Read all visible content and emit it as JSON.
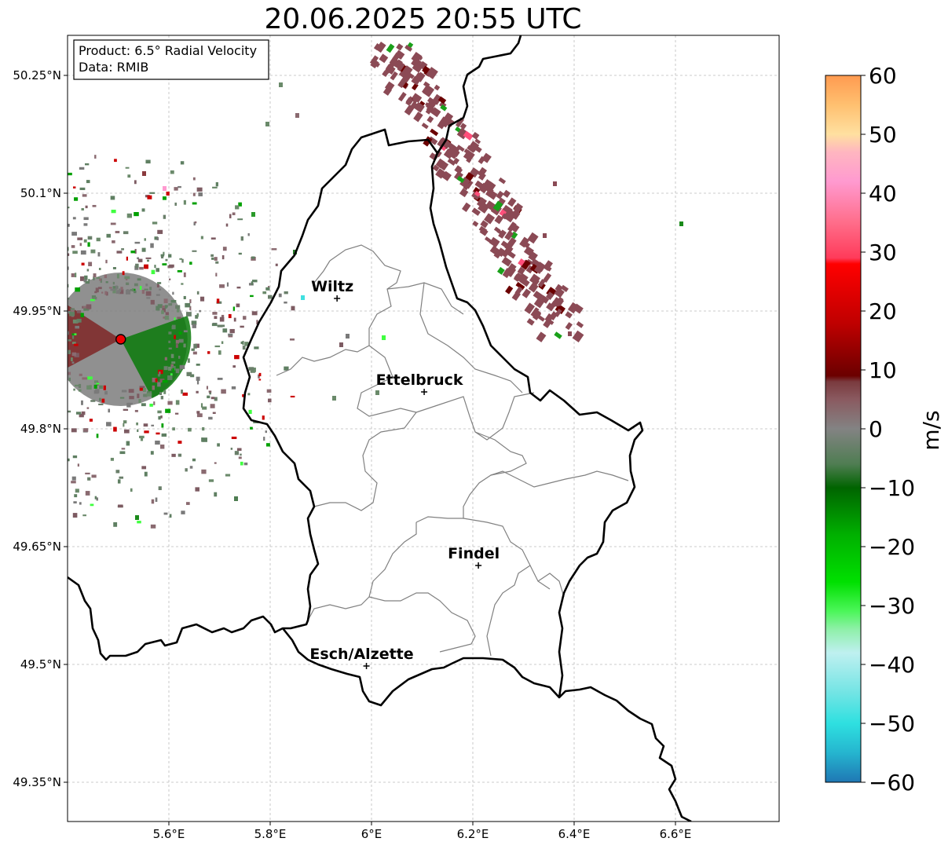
{
  "title": "20.06.2025 20:55 UTC",
  "info": {
    "product": "Product: 6.5° Radial Velocity",
    "data": "Data: RMIB"
  },
  "lat_ticks": [
    {
      "value": 50.25,
      "label": "50.25°N"
    },
    {
      "value": 50.1,
      "label": "50.1°N"
    },
    {
      "value": 49.95,
      "label": "49.95°N"
    },
    {
      "value": 49.8,
      "label": "49.8°N"
    },
    {
      "value": 49.65,
      "label": "49.65°N"
    },
    {
      "value": 49.5,
      "label": "49.5°N"
    },
    {
      "value": 49.35,
      "label": "49.35°N"
    }
  ],
  "lon_ticks": [
    {
      "value": 5.6,
      "label": "5.6°E"
    },
    {
      "value": 5.8,
      "label": "5.8°E"
    },
    {
      "value": 6.0,
      "label": "6°E"
    },
    {
      "value": 6.2,
      "label": "6.2°E"
    },
    {
      "value": 6.4,
      "label": "6.4°E"
    },
    {
      "value": 6.6,
      "label": "6.6°E"
    }
  ],
  "cities": [
    {
      "name": "Wiltz",
      "lon": 5.932,
      "lat": 49.966
    },
    {
      "name": "Ettelbruck",
      "lon": 6.104,
      "lat": 49.847
    },
    {
      "name": "Findel",
      "lon": 6.211,
      "lat": 49.626
    },
    {
      "name": "Esch/Alzette",
      "lon": 5.99,
      "lat": 49.498
    }
  ],
  "radar_site": {
    "lon": 5.505,
    "lat": 49.914
  },
  "colorbar": {
    "label": "m/s",
    "min": -60,
    "max": 60,
    "ticks": [
      {
        "value": 60,
        "label": "60"
      },
      {
        "value": 50,
        "label": "50"
      },
      {
        "value": 40,
        "label": "40"
      },
      {
        "value": 30,
        "label": "30"
      },
      {
        "value": 20,
        "label": "20"
      },
      {
        "value": 10,
        "label": "10"
      },
      {
        "value": 0,
        "label": "0"
      },
      {
        "value": -10,
        "label": "−10"
      },
      {
        "value": -20,
        "label": "−20"
      },
      {
        "value": -30,
        "label": "−30"
      },
      {
        "value": -40,
        "label": "−40"
      },
      {
        "value": -50,
        "label": "−50"
      },
      {
        "value": -60,
        "label": "−60"
      }
    ],
    "stops": [
      {
        "v": -60,
        "color": "#1f77b4"
      },
      {
        "v": -55,
        "color": "#25b5cf"
      },
      {
        "v": -50,
        "color": "#2ee0e0"
      },
      {
        "v": -45,
        "color": "#70e4e4"
      },
      {
        "v": -38,
        "color": "#bff0f0"
      },
      {
        "v": -34,
        "color": "#8ef0a8"
      },
      {
        "v": -31,
        "color": "#4cf65a"
      },
      {
        "v": -26,
        "color": "#00e000"
      },
      {
        "v": -18,
        "color": "#00b000"
      },
      {
        "v": -10,
        "color": "#006400"
      },
      {
        "v": -6,
        "color": "#4f7d52"
      },
      {
        "v": 0,
        "color": "#838383"
      },
      {
        "v": 5,
        "color": "#8a5a60"
      },
      {
        "v": 8,
        "color": "#7a3a3e"
      },
      {
        "v": 9,
        "color": "#6b0000"
      },
      {
        "v": 18,
        "color": "#c00000"
      },
      {
        "v": 28,
        "color": "#ff0000"
      },
      {
        "v": 29,
        "color": "#ff3b5a"
      },
      {
        "v": 35,
        "color": "#ff6d8a"
      },
      {
        "v": 42,
        "color": "#ff9ad0"
      },
      {
        "v": 47,
        "color": "#ffb6c0"
      },
      {
        "v": 50,
        "color": "#ffe0a0"
      },
      {
        "v": 55,
        "color": "#ffc070"
      },
      {
        "v": 60,
        "color": "#ff9a50"
      }
    ]
  },
  "colors": {
    "country_border": "#000000",
    "canton_border": "#808080",
    "grid": "#bbbbbb",
    "radar_dot": "#ee0000",
    "rain_band": "#8b4a55"
  }
}
